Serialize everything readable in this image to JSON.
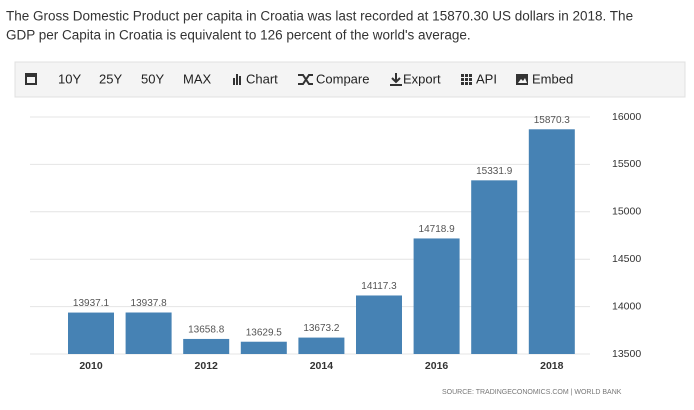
{
  "description": [
    "The Gross Domestic Product per capita in Croatia was last recorded at 15870.30 US dollars in 2018. The",
    "GDP per Capita in Croatia is equivalent to 126 percent of the world's average."
  ],
  "toolbar": [
    "10Y",
    "25Y",
    "50Y",
    "MAX",
    "Chart",
    "Compare",
    "Export",
    "API",
    "Embed"
  ],
  "source": "SOURCE: TRADINGECONOMICS.COM | WORLD BANK",
  "chart_data": {
    "type": "bar",
    "categories": [
      "2010",
      null,
      "2012",
      null,
      "2014",
      null,
      "2016",
      null,
      "2018"
    ],
    "values": [
      13937.1,
      13937.8,
      13658.8,
      13629.5,
      13673.2,
      14117.3,
      14718.9,
      15331.9,
      15870.3
    ],
    "color": "#4682b4",
    "ylim": [
      13500,
      16000
    ],
    "yticks": [
      13500,
      14000,
      14500,
      15000,
      15500,
      16000
    ],
    "grid": true
  }
}
